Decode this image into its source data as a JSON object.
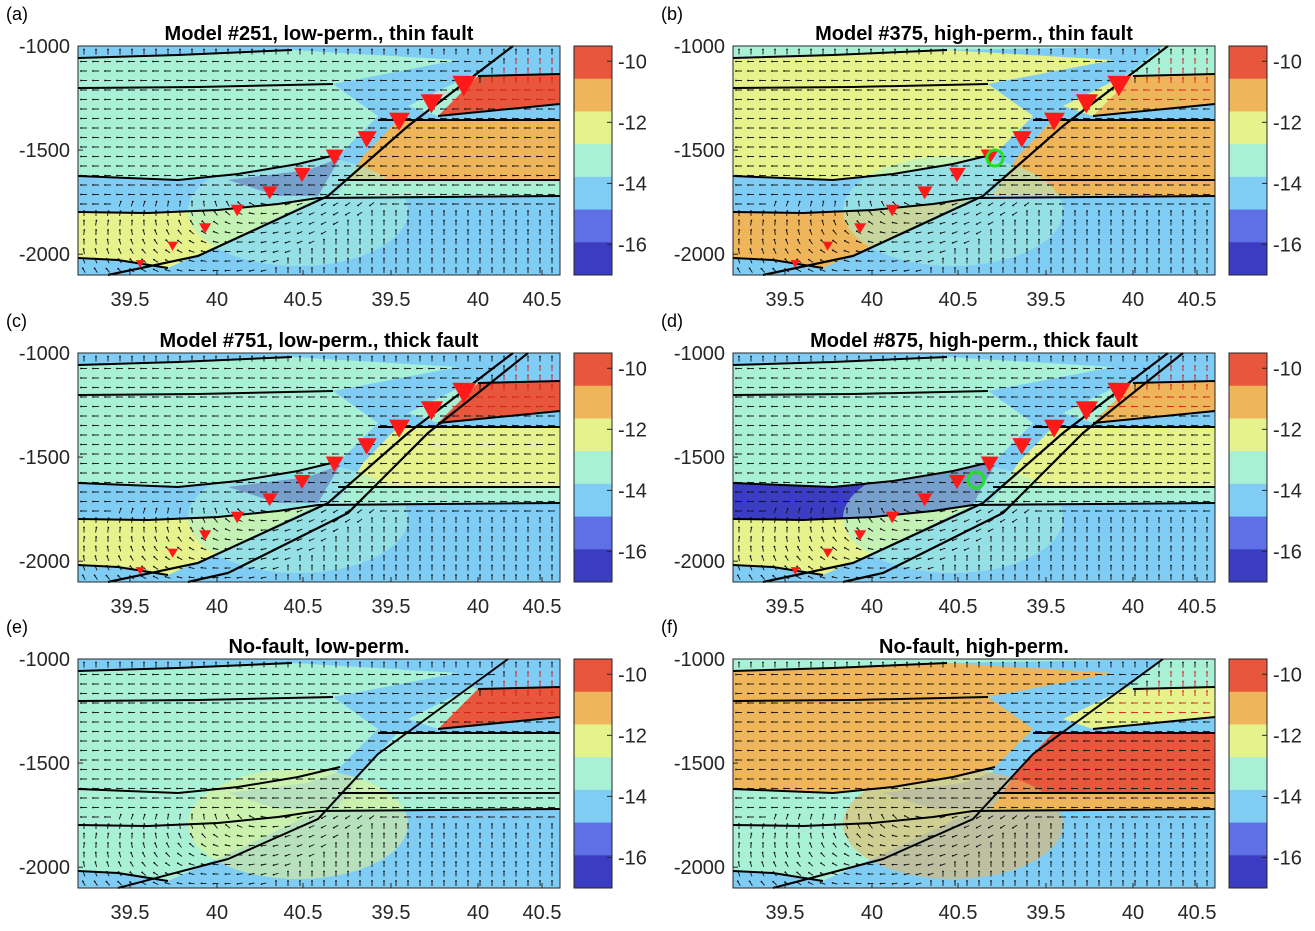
{
  "figure": {
    "y_ticks": [
      "-1000",
      "-1500",
      "-2000"
    ],
    "x_ticks": [
      "39.5",
      "40",
      "40.5",
      "39.5",
      "40",
      "40.5"
    ],
    "colorbar_ticks": [
      "-10",
      "-12",
      "-14",
      "-16"
    ],
    "colorbar_colors": [
      "#e8563c",
      "#efb55a",
      "#e6f28c",
      "#a8f0d6",
      "#7fcdf5",
      "#5f70e6",
      "#3a3dc2"
    ]
  },
  "chart_data": [
    {
      "type": "heatmap",
      "panel_label": "(a)",
      "title": "Model #251, low-perm., thin fault",
      "y_ticks": [
        -1000,
        -1500,
        -2000
      ],
      "x_tick_labels": [
        "39.5",
        "40",
        "40.5",
        "39.5",
        "40",
        "40.5"
      ],
      "colorbar": {
        "ticks": [
          -10,
          -12,
          -14,
          -16
        ],
        "range": [
          -17,
          -9.5
        ]
      },
      "fault": "thin",
      "fault_arrows": true
    },
    {
      "type": "heatmap",
      "panel_label": "(b)",
      "title": "Model #375, high-perm., thin fault",
      "y_ticks": [
        -1000,
        -1500,
        -2000
      ],
      "x_tick_labels": [
        "39.5",
        "40",
        "40.5",
        "39.5",
        "40",
        "40.5"
      ],
      "colorbar": {
        "ticks": [
          -10,
          -12,
          -14,
          -16
        ],
        "range": [
          -17,
          -9.5
        ]
      },
      "fault": "thin",
      "fault_arrows": true,
      "marker": "green-circle"
    },
    {
      "type": "heatmap",
      "panel_label": "(c)",
      "title": "Model #751, low-perm., thick fault",
      "y_ticks": [
        -1000,
        -1500,
        -2000
      ],
      "x_tick_labels": [
        "39.5",
        "40",
        "40.5",
        "39.5",
        "40",
        "40.5"
      ],
      "colorbar": {
        "ticks": [
          -10,
          -12,
          -14,
          -16
        ],
        "range": [
          -17,
          -9.5
        ]
      },
      "fault": "thick",
      "fault_arrows": true
    },
    {
      "type": "heatmap",
      "panel_label": "(d)",
      "title": "Model #875, high-perm., thick fault",
      "y_ticks": [
        -1000,
        -1500,
        -2000
      ],
      "x_tick_labels": [
        "39.5",
        "40",
        "40.5",
        "39.5",
        "40",
        "40.5"
      ],
      "colorbar": {
        "ticks": [
          -10,
          -12,
          -14,
          -16
        ],
        "range": [
          -17,
          -9.5
        ]
      },
      "fault": "thick",
      "fault_arrows": true,
      "marker": "green-circle"
    },
    {
      "type": "heatmap",
      "panel_label": "(e)",
      "title": "No-fault, low-perm.",
      "y_ticks": [
        -1000,
        -1500,
        -2000
      ],
      "x_tick_labels": [
        "39.5",
        "40",
        "40.5",
        "39.5",
        "40",
        "40.5"
      ],
      "colorbar": {
        "ticks": [
          -10,
          -12,
          -14,
          -16
        ],
        "range": [
          -17,
          -9.5
        ]
      },
      "fault": "none",
      "fault_arrows": false
    },
    {
      "type": "heatmap",
      "panel_label": "(f)",
      "title": "No-fault, high-perm.",
      "y_ticks": [
        -1000,
        -1500,
        -2000
      ],
      "x_tick_labels": [
        "39.5",
        "40",
        "40.5",
        "39.5",
        "40",
        "40.5"
      ],
      "colorbar": {
        "ticks": [
          -10,
          -12,
          -14,
          -16
        ],
        "range": [
          -17,
          -9.5
        ]
      },
      "fault": "none",
      "fault_arrows": false
    }
  ]
}
